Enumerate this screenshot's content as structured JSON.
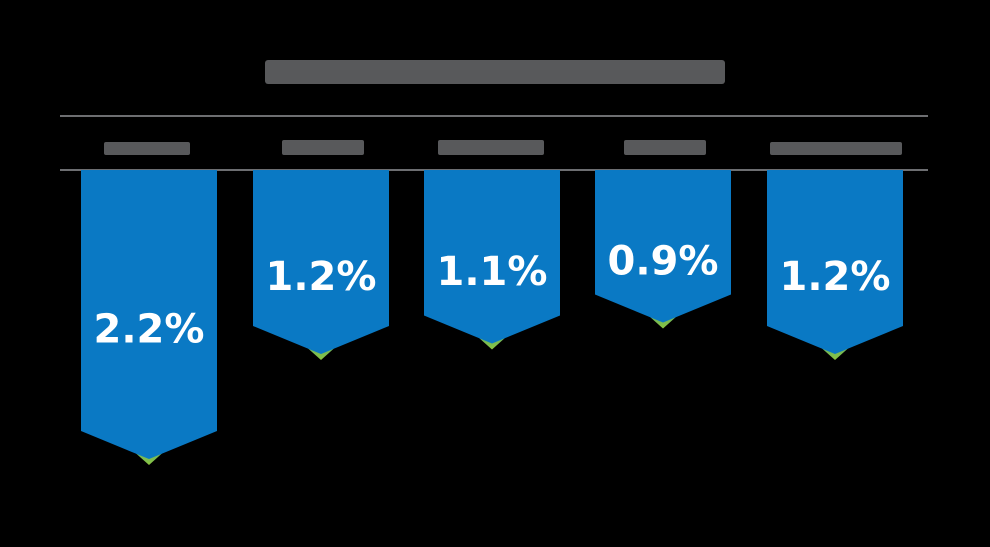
{
  "chart_data": {
    "type": "bar",
    "title": "",
    "categories": [
      "",
      "",
      "",
      "",
      ""
    ],
    "values": [
      2.2,
      1.2,
      1.1,
      0.9,
      1.2
    ],
    "value_labels": [
      "2.2%",
      "1.2%",
      "1.1%",
      "0.9%",
      "1.2%"
    ],
    "unit": "%",
    "orientation": "downward pennants",
    "grid": false,
    "legend": "none"
  },
  "colors": {
    "background": "#000000",
    "bar": "#0a79c4",
    "accent": "#8cc63f",
    "rule": "#6d6e71",
    "text_dark": "#58595b",
    "value_text": "#ffffff"
  }
}
